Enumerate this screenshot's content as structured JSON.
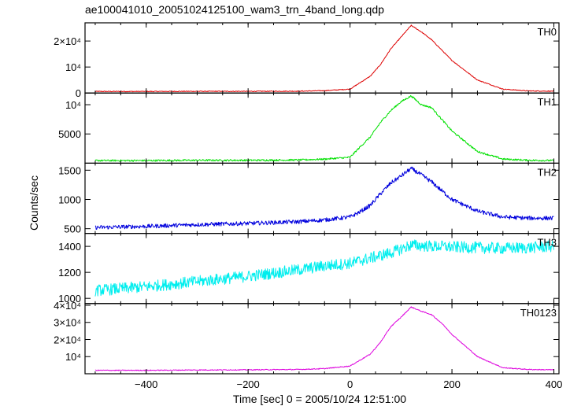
{
  "title": "ae100041010_20051024125100_wam3_trn_4band_long.qdp",
  "xlabel": "Time [sec] 0 = 2005/10/24 12:51:00",
  "ylabel": "Counts/sec",
  "chart_data": {
    "type": "line",
    "title": "ae100041010_20051024125100_wam3_trn_4band_long.qdp",
    "xlabel": "Time [sec] 0 = 2005/10/24 12:51:00",
    "ylabel": "Counts/sec",
    "xlim": [
      -520,
      410
    ],
    "x_ticks": [
      {
        "value": -400,
        "label": "−400"
      },
      {
        "value": -200,
        "label": "−200"
      },
      {
        "value": 0,
        "label": "0"
      },
      {
        "value": 200,
        "label": "200"
      },
      {
        "value": 400,
        "label": "400"
      }
    ],
    "shared_x": [
      -500,
      -400,
      -300,
      -200,
      -100,
      -50,
      0,
      20,
      40,
      60,
      80,
      100,
      120,
      140,
      160,
      180,
      200,
      250,
      300,
      350,
      400
    ],
    "panels": [
      {
        "name": "TH0",
        "color": "#dd0000",
        "ylim": [
          0,
          27000
        ],
        "noise": 150,
        "y_ticks": [
          {
            "value": 0,
            "label": "0"
          },
          {
            "value": 10000,
            "label": "10⁴"
          },
          {
            "value": 20000,
            "label": "2×10⁴"
          }
        ],
        "values": [
          600,
          600,
          650,
          650,
          700,
          900,
          1500,
          4000,
          6500,
          11000,
          17000,
          21500,
          26000,
          23500,
          20500,
          16500,
          12500,
          5000,
          1500,
          800,
          700
        ]
      },
      {
        "name": "TH1",
        "color": "#00e000",
        "ylim": [
          0,
          12000
        ],
        "noise": 150,
        "y_ticks": [
          {
            "value": 5000,
            "label": "5000"
          },
          {
            "value": 10000,
            "label": "10⁴"
          }
        ],
        "values": [
          450,
          450,
          500,
          500,
          550,
          700,
          1000,
          2800,
          4500,
          7000,
          9000,
          10500,
          11500,
          10000,
          9500,
          7500,
          5500,
          2000,
          700,
          500,
          450
        ]
      },
      {
        "name": "TH2",
        "color": "#0000dd",
        "ylim": [
          420,
          1620
        ],
        "noise": 35,
        "y_ticks": [
          {
            "value": 500,
            "label": "500"
          },
          {
            "value": 1000,
            "label": "1000"
          },
          {
            "value": 1500,
            "label": "1500"
          }
        ],
        "values": [
          520,
          540,
          570,
          590,
          620,
          650,
          700,
          790,
          900,
          1100,
          1280,
          1400,
          1530,
          1420,
          1300,
          1150,
          1000,
          800,
          700,
          680,
          680
        ]
      },
      {
        "name": "TH3",
        "color": "#00eeee",
        "ylim": [
          960,
          1500
        ],
        "noise": 45,
        "y_ticks": [
          {
            "value": 1000,
            "label": "1000"
          },
          {
            "value": 1200,
            "label": "1200"
          },
          {
            "value": 1400,
            "label": "1400"
          }
        ],
        "values": [
          1060,
          1090,
          1130,
          1170,
          1220,
          1250,
          1270,
          1290,
          1310,
          1330,
          1350,
          1380,
          1410,
          1405,
          1400,
          1400,
          1395,
          1390,
          1385,
          1390,
          1400
        ]
      },
      {
        "name": "TH0123",
        "color": "#dd00dd",
        "ylim": [
          0,
          41000
        ],
        "noise": 250,
        "y_ticks": [
          {
            "value": 10000,
            "label": "10⁴"
          },
          {
            "value": 20000,
            "label": "2×10⁴"
          },
          {
            "value": 30000,
            "label": "3×10⁴"
          },
          {
            "value": 40000,
            "label": "4×10⁴"
          }
        ],
        "values": [
          2000,
          2000,
          2200,
          2300,
          2500,
          3000,
          4500,
          8000,
          11500,
          18500,
          27500,
          33000,
          39000,
          36500,
          34500,
          29500,
          23000,
          10000,
          3500,
          2500,
          2300
        ]
      }
    ]
  }
}
